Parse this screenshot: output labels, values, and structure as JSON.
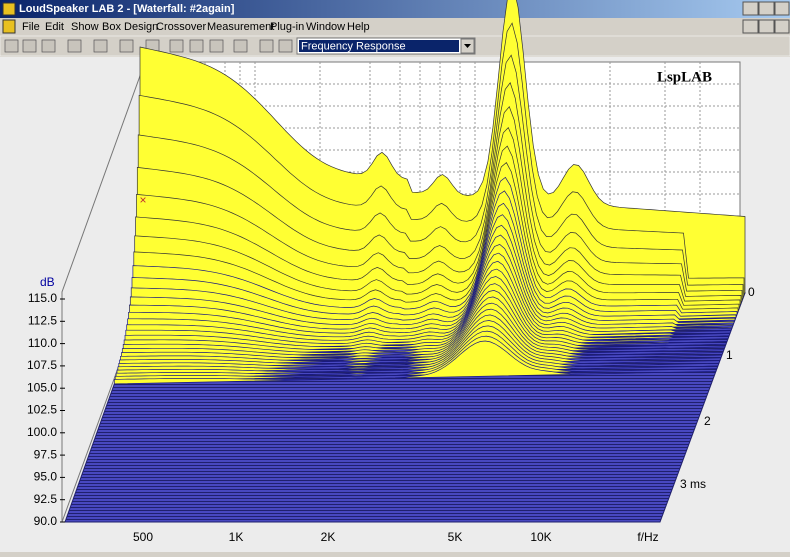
{
  "window": {
    "title": "LoudSpeaker LAB 2 - [Waterfall: #2again]"
  },
  "menu": [
    "File",
    "Edit",
    "Show",
    "Box Design",
    "Crossover",
    "Measurement",
    "Plug-in",
    "Window",
    "Help"
  ],
  "toolbar": {
    "view_select": "Frequency Response"
  },
  "plot": {
    "logo": "LspLAB",
    "y_axis_label": "dB",
    "y_ticks": [
      "115.0",
      "112.5",
      "110.0",
      "107.5",
      "105.0",
      "102.5",
      "100.0",
      "97.5",
      "95.0",
      "92.5",
      "90.0"
    ],
    "x_ticks": [
      "500",
      "1K",
      "2K",
      "5K",
      "10K"
    ],
    "x_axis_label": "f/Hz",
    "depth_ticks": [
      "0",
      "1",
      "2",
      "3 ms"
    ]
  }
}
